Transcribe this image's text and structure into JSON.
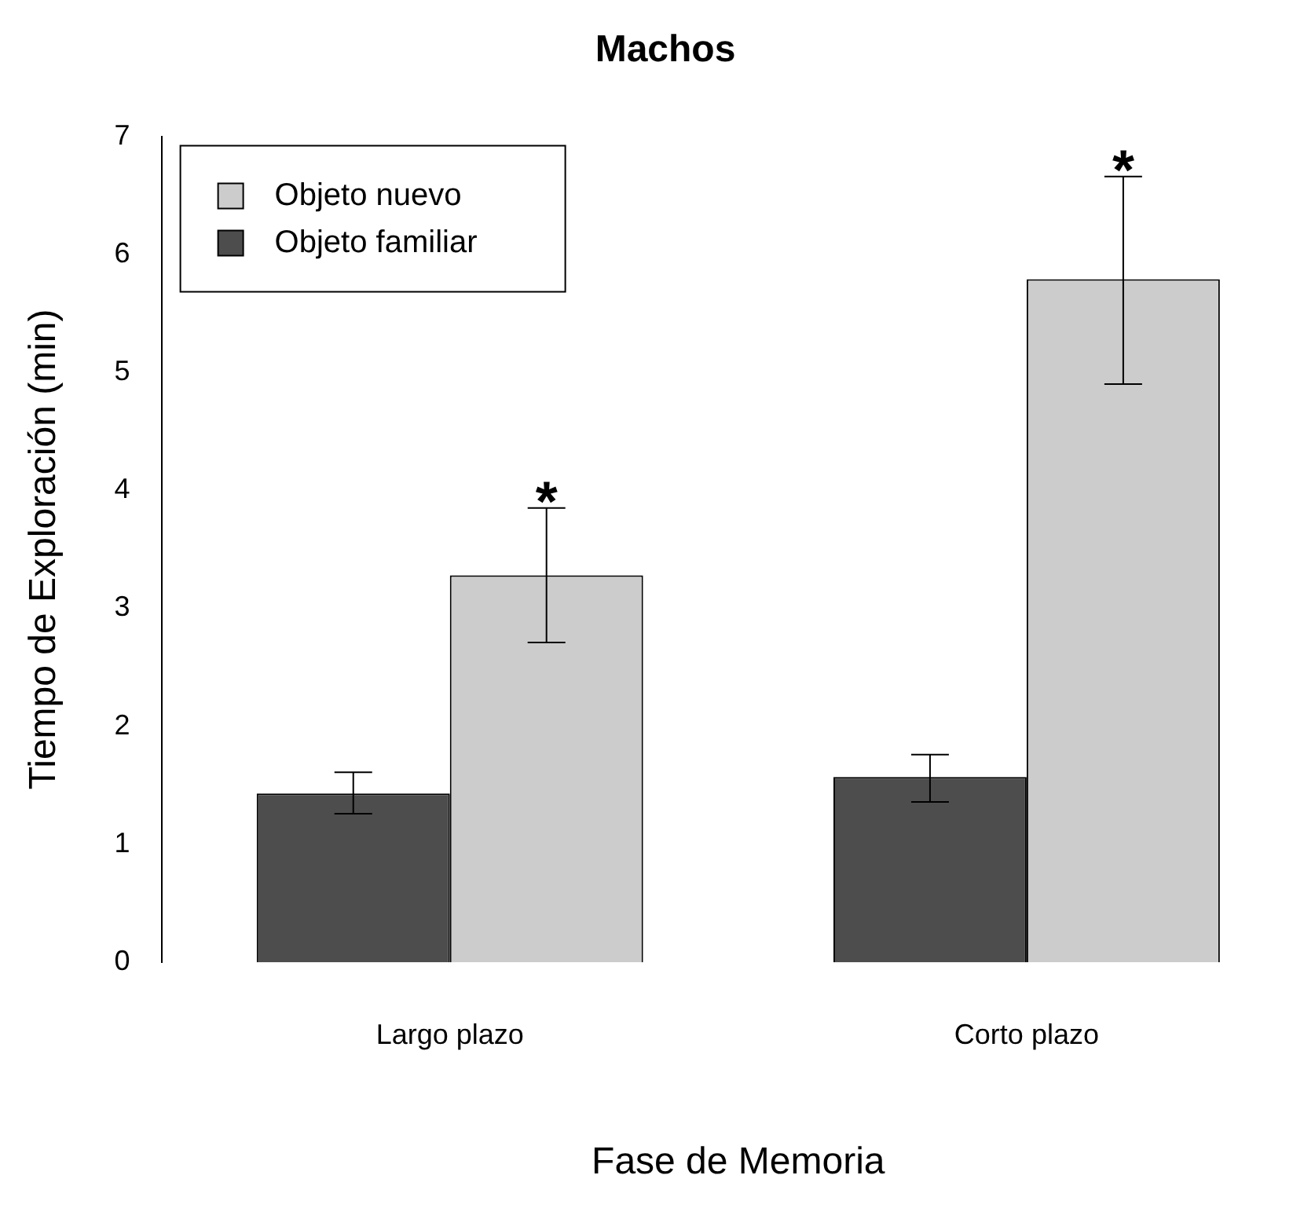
{
  "chart_data": {
    "type": "bar",
    "title": "Machos",
    "xlabel": "Fase de Memoria",
    "ylabel": "Tiempo de Exploración (min)",
    "categories": [
      "Largo plazo",
      "Corto plazo"
    ],
    "series": [
      {
        "name": "Objeto familiar",
        "color": "#4d4d4d",
        "values": [
          1.43,
          1.57
        ],
        "errors": [
          [
            1.26,
            1.61
          ],
          [
            1.36,
            1.76
          ]
        ]
      },
      {
        "name": "Objeto nuevo",
        "color": "#cccccc",
        "values": [
          3.28,
          5.79
        ],
        "errors": [
          [
            2.71,
            3.85
          ],
          [
            4.9,
            6.66
          ]
        ]
      }
    ],
    "ylim": [
      0,
      7
    ],
    "yticks": [
      0,
      1,
      2,
      3,
      4,
      5,
      6,
      7
    ],
    "grid": false,
    "legend": "top left",
    "annotations": [
      "*",
      "*"
    ]
  }
}
